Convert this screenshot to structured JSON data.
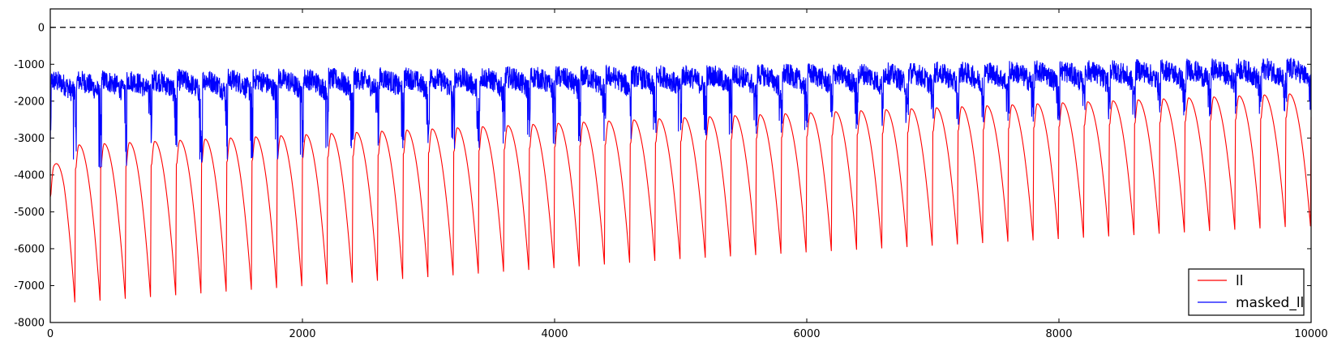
{
  "chart_data": {
    "type": "line",
    "title": "",
    "xlabel": "",
    "ylabel": "",
    "xlim": [
      0,
      10000
    ],
    "ylim": [
      -8000,
      500
    ],
    "xticks": [
      0,
      2000,
      4000,
      6000,
      8000,
      10000
    ],
    "yticks": [
      0,
      -1000,
      -2000,
      -3000,
      -4000,
      -5000,
      -6000,
      -7000,
      -8000
    ],
    "grid": false,
    "legend_position": "lower-right",
    "reference_line": {
      "y": 0,
      "style": "dashed",
      "color": "#000000"
    },
    "series": [
      {
        "name": "ll",
        "color": "#ff0000",
        "pattern": "sawtooth",
        "period": 200,
        "peaks": [
          [
            0,
            -3950
          ],
          [
            110,
            -3200
          ],
          [
            5000,
            -2450
          ],
          [
            10000,
            -1780
          ]
        ],
        "troughs": [
          [
            200,
            -7700
          ],
          [
            5000,
            -6500
          ],
          [
            9900,
            -5600
          ]
        ]
      },
      {
        "name": "masked_ll",
        "color": "#0000ff",
        "pattern": "noisy periodic",
        "period": 200,
        "upper": [
          [
            0,
            -1150
          ],
          [
            5000,
            -1000
          ],
          [
            10000,
            -800
          ]
        ],
        "lower": [
          [
            0,
            -3900
          ],
          [
            5000,
            -3000
          ],
          [
            10000,
            -2300
          ]
        ]
      }
    ]
  }
}
